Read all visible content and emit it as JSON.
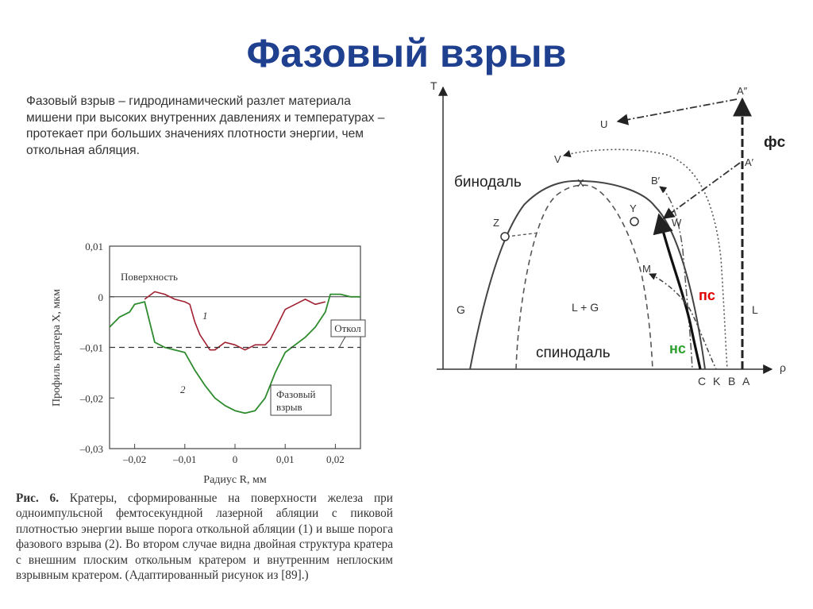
{
  "slide": {
    "title": "Фазовый взрыв",
    "intro": "Фазовый взрыв – гидродинамический разлет материала мишени при высоких внутренних давлениях и температурах – протекает при больших значениях плотности энергии, чем откольная абляция.",
    "caption_label": "Рис. 6.",
    "caption_text": " Кратеры, сформированные на поверхности железа при одноимпульсной фемтосекундной лазерной абляции с пиковой плотностью энергии выше порога откольной абляции (1) и выше порога фазового взрыва (2). Во втором случае видна двойная структура кратера с внешним плоским откольным кратером и внутренним неплоским взрывным кратером. (Адаптированный рисунок из [89].)"
  },
  "crater_plot": {
    "ylabel": "Профиль кратера X, мкм",
    "xlabel": "Радиус R, мм",
    "yticks": [
      "0,01",
      "0",
      "–0,01",
      "–0,02",
      "–0,03"
    ],
    "xticks": [
      "–0,02",
      "–0,01",
      "0",
      "0,01",
      "0,02"
    ],
    "label_surface": "Поверхность",
    "label_spall": "Откол",
    "label_explosion_1": "Фазовый",
    "label_explosion_2": "взрыв",
    "curve1_label": "1",
    "curve2_label": "2",
    "colors": {
      "curve1": "#a02030",
      "curve2": "#2e8b2e"
    }
  },
  "chart_data": {
    "type": "line",
    "xlabel": "Радиус R, мм",
    "ylabel": "Профиль кратера X, мкм",
    "xlim": [
      -0.025,
      0.025
    ],
    "ylim": [
      -0.03,
      0.01
    ],
    "series": [
      {
        "name": "1",
        "x": [
          -0.018,
          -0.016,
          -0.014,
          -0.012,
          -0.01,
          -0.009,
          -0.008,
          -0.007,
          -0.006,
          -0.005,
          -0.004,
          -0.002,
          0,
          0.002,
          0.004,
          0.006,
          0.007,
          0.008,
          0.009,
          0.01,
          0.012,
          0.014,
          0.016,
          0.018
        ],
        "y": [
          -0.0005,
          0.001,
          0.0005,
          -0.0005,
          -0.001,
          -0.0015,
          -0.005,
          -0.0075,
          -0.009,
          -0.0105,
          -0.0105,
          -0.009,
          -0.0095,
          -0.0105,
          -0.0095,
          -0.0095,
          -0.0085,
          -0.0065,
          -0.0045,
          -0.0025,
          -0.0015,
          -0.0005,
          -0.0015,
          -0.001
        ]
      },
      {
        "name": "2",
        "x": [
          -0.025,
          -0.023,
          -0.021,
          -0.02,
          -0.018,
          -0.016,
          -0.014,
          -0.012,
          -0.01,
          -0.008,
          -0.006,
          -0.004,
          -0.002,
          0,
          0.002,
          0.004,
          0.006,
          0.008,
          0.01,
          0.012,
          0.014,
          0.016,
          0.018,
          0.019,
          0.021,
          0.023,
          0.025
        ],
        "y": [
          -0.006,
          -0.004,
          -0.003,
          -0.0015,
          -0.001,
          -0.009,
          -0.01,
          -0.0105,
          -0.011,
          -0.0145,
          -0.0175,
          -0.02,
          -0.0215,
          -0.0225,
          -0.023,
          -0.0225,
          -0.02,
          -0.015,
          -0.011,
          -0.0095,
          -0.008,
          -0.006,
          -0.003,
          0.0005,
          0.0005,
          0,
          0
        ]
      },
      {
        "name": "Откол",
        "x": [
          -0.025,
          0.025
        ],
        "y": [
          -0.01,
          -0.01
        ]
      }
    ]
  },
  "phase_diagram": {
    "axis_t": "T",
    "axis_rho": "ρ",
    "labels": {
      "U": "U",
      "V": "V",
      "X": "X",
      "Z": "Z",
      "Y": "Y",
      "W": "W",
      "M": "M",
      "Bp": "B′",
      "App": "A″",
      "Ap": "A′",
      "G": "G",
      "LG": "L + G",
      "L": "L",
      "C": "C",
      "K": "K",
      "B": "B",
      "A": "A"
    },
    "binodal": "бинодаль",
    "spinodal": "спинодаль",
    "fs": "фс",
    "ps": "пс",
    "ns": "нс",
    "colors": {
      "ps": "#e00000",
      "ns": "#2ea02e"
    }
  }
}
